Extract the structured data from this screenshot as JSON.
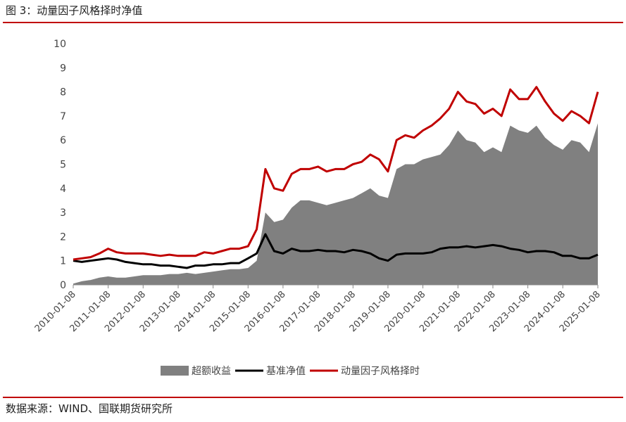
{
  "header": {
    "title": "图 3：动量因子风格择时净值"
  },
  "chart_data": {
    "type": "line",
    "x": [
      "2010-01-08",
      "2010-04-08",
      "2010-07-08",
      "2010-10-08",
      "2011-01-08",
      "2011-04-08",
      "2011-07-08",
      "2011-10-08",
      "2012-01-08",
      "2012-04-08",
      "2012-07-08",
      "2012-10-08",
      "2013-01-08",
      "2013-04-08",
      "2013-07-08",
      "2013-10-08",
      "2014-01-08",
      "2014-04-08",
      "2014-07-08",
      "2014-10-08",
      "2015-01-08",
      "2015-04-08",
      "2015-07-08",
      "2015-10-08",
      "2016-01-08",
      "2016-04-08",
      "2016-07-08",
      "2016-10-08",
      "2017-01-08",
      "2017-04-08",
      "2017-07-08",
      "2017-10-08",
      "2018-01-08",
      "2018-04-08",
      "2018-07-08",
      "2018-10-08",
      "2019-01-08",
      "2019-04-08",
      "2019-07-08",
      "2019-10-08",
      "2020-01-08",
      "2020-04-08",
      "2020-07-08",
      "2020-10-08",
      "2021-01-08",
      "2021-04-08",
      "2021-07-08",
      "2021-10-08",
      "2022-01-08",
      "2022-04-08",
      "2022-07-08",
      "2022-10-08",
      "2023-01-08",
      "2023-04-08",
      "2023-07-08",
      "2023-10-08",
      "2024-01-08",
      "2024-04-08",
      "2024-07-08",
      "2024-10-08",
      "2025-01-08"
    ],
    "series": [
      {
        "name": "超额收益",
        "type": "area",
        "color": "#808080",
        "values": [
          0.05,
          0.15,
          0.2,
          0.3,
          0.35,
          0.3,
          0.3,
          0.35,
          0.4,
          0.4,
          0.4,
          0.45,
          0.45,
          0.5,
          0.45,
          0.5,
          0.55,
          0.6,
          0.65,
          0.65,
          0.7,
          1.0,
          3.0,
          2.6,
          2.7,
          3.2,
          3.5,
          3.5,
          3.4,
          3.3,
          3.4,
          3.5,
          3.6,
          3.8,
          4.0,
          3.7,
          3.6,
          4.8,
          5.0,
          5.0,
          5.2,
          5.3,
          5.4,
          5.8,
          6.4,
          6.0,
          5.9,
          5.5,
          5.7,
          5.5,
          6.6,
          6.4,
          6.3,
          6.6,
          6.1,
          5.8,
          5.6,
          6.0,
          5.9,
          5.5,
          6.7
        ]
      },
      {
        "name": "基准净值",
        "type": "line",
        "color": "#000000",
        "values": [
          1.0,
          0.95,
          1.0,
          1.05,
          1.1,
          1.05,
          0.95,
          0.9,
          0.85,
          0.85,
          0.8,
          0.8,
          0.75,
          0.7,
          0.8,
          0.8,
          0.85,
          0.85,
          0.9,
          0.9,
          1.1,
          1.3,
          2.1,
          1.4,
          1.3,
          1.5,
          1.4,
          1.4,
          1.45,
          1.4,
          1.4,
          1.35,
          1.45,
          1.4,
          1.3,
          1.1,
          1.0,
          1.25,
          1.3,
          1.3,
          1.3,
          1.35,
          1.5,
          1.55,
          1.55,
          1.6,
          1.55,
          1.6,
          1.65,
          1.6,
          1.5,
          1.45,
          1.35,
          1.4,
          1.4,
          1.35,
          1.2,
          1.2,
          1.1,
          1.1,
          1.25
        ]
      },
      {
        "name": "动量因子风格择时",
        "type": "line",
        "color": "#c00000",
        "values": [
          1.05,
          1.1,
          1.15,
          1.3,
          1.5,
          1.35,
          1.3,
          1.3,
          1.3,
          1.25,
          1.2,
          1.25,
          1.2,
          1.2,
          1.2,
          1.35,
          1.3,
          1.4,
          1.5,
          1.5,
          1.6,
          2.3,
          4.8,
          4.0,
          3.9,
          4.6,
          4.8,
          4.8,
          4.9,
          4.7,
          4.8,
          4.8,
          5.0,
          5.1,
          5.4,
          5.2,
          4.7,
          6.0,
          6.2,
          6.1,
          6.4,
          6.6,
          6.9,
          7.3,
          8.0,
          7.6,
          7.5,
          7.1,
          7.3,
          7.0,
          8.1,
          7.7,
          7.7,
          8.2,
          7.6,
          7.1,
          6.8,
          7.2,
          7.0,
          6.7,
          8.0
        ]
      }
    ],
    "xlim": [
      "2010-01-08",
      "2025-01-08"
    ],
    "xticks": [
      "2010-01-08",
      "2011-01-08",
      "2012-01-08",
      "2013-01-08",
      "2014-01-08",
      "2015-01-08",
      "2016-01-08",
      "2017-01-08",
      "2018-01-08",
      "2019-01-08",
      "2020-01-08",
      "2021-01-08",
      "2022-01-08",
      "2023-01-08",
      "2024-01-08",
      "2025-01-08"
    ],
    "ylim": [
      0,
      10
    ],
    "yticks": [
      0,
      1,
      2,
      3,
      4,
      5,
      6,
      7,
      8,
      9,
      10
    ],
    "grid": false,
    "legend": "bottom"
  },
  "footer": {
    "source": "数据来源：WIND、国联期货研究所"
  }
}
